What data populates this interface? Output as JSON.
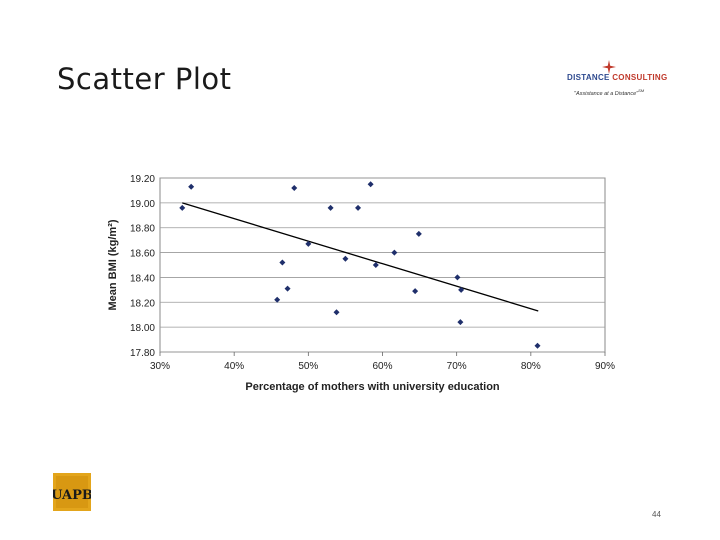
{
  "slide": {
    "title": "Scatter Plot",
    "page_number": "44"
  },
  "logo": {
    "name_part1": "DISTANCE",
    "name_part2": "CONSULTING",
    "tagline": "\"Assistance at a Distance\"",
    "tm": "SM"
  },
  "footer_logo": {
    "text": "UAPB"
  },
  "chart_data": {
    "type": "scatter",
    "title": "",
    "xlabel": "Percentage of mothers with university education",
    "ylabel": "Mean BMI (kg/m²)",
    "xlim": [
      30,
      90
    ],
    "ylim": [
      17.8,
      19.2
    ],
    "x_ticks": [
      30,
      40,
      50,
      60,
      70,
      80,
      90
    ],
    "x_tick_labels": [
      "30%",
      "40%",
      "50%",
      "60%",
      "70%",
      "80%",
      "90%"
    ],
    "y_ticks": [
      17.8,
      18.0,
      18.2,
      18.4,
      18.6,
      18.8,
      19.0,
      19.2
    ],
    "y_tick_labels": [
      "17.80",
      "18.00",
      "18.20",
      "18.40",
      "18.60",
      "18.80",
      "19.00",
      "19.20"
    ],
    "grid": "horizontal",
    "trendline": {
      "x": [
        33,
        81
      ],
      "y": [
        19.0,
        18.13
      ]
    },
    "points": [
      {
        "x": 33,
        "y": 18.96
      },
      {
        "x": 34.2,
        "y": 19.13
      },
      {
        "x": 48.1,
        "y": 19.12
      },
      {
        "x": 53,
        "y": 18.96
      },
      {
        "x": 56.7,
        "y": 18.96
      },
      {
        "x": 58.4,
        "y": 19.15
      },
      {
        "x": 50,
        "y": 18.67
      },
      {
        "x": 64.9,
        "y": 18.75
      },
      {
        "x": 61.6,
        "y": 18.6
      },
      {
        "x": 46.5,
        "y": 18.52
      },
      {
        "x": 55,
        "y": 18.55
      },
      {
        "x": 59.1,
        "y": 18.5
      },
      {
        "x": 47.2,
        "y": 18.31
      },
      {
        "x": 45.8,
        "y": 18.22
      },
      {
        "x": 53.8,
        "y": 18.12
      },
      {
        "x": 64.4,
        "y": 18.29
      },
      {
        "x": 70.1,
        "y": 18.4
      },
      {
        "x": 70.6,
        "y": 18.3
      },
      {
        "x": 70.5,
        "y": 18.04
      },
      {
        "x": 80.9,
        "y": 17.85
      }
    ]
  }
}
